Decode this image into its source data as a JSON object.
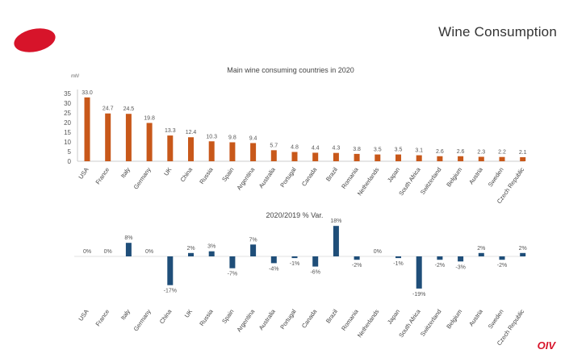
{
  "header": {
    "title": "Wine Consumption"
  },
  "footer": {
    "brand": "OIV"
  },
  "colors": {
    "consumption": "#c8581a",
    "variation": "#1f4e79",
    "brand_red": "#d7142a"
  },
  "chart_data": [
    {
      "type": "bar",
      "title": "Main wine consuming countries in 2020",
      "ylabel": "mhl",
      "ylim": [
        0,
        35
      ],
      "yticks": [
        0,
        5,
        10,
        15,
        20,
        25,
        30,
        35
      ],
      "grid": false,
      "categories": [
        "USA",
        "France",
        "Italy",
        "Germany",
        "UK",
        "China",
        "Russia",
        "Spain",
        "Argentina",
        "Australia",
        "Portugal",
        "Canada",
        "Brazil",
        "Romania",
        "Netherlands",
        "Japan",
        "South Africa",
        "Switzerland",
        "Belgium",
        "Austria",
        "Sweden",
        "Czech Republic"
      ],
      "values": [
        33.0,
        24.7,
        24.5,
        19.8,
        13.3,
        12.4,
        10.3,
        9.8,
        9.4,
        5.7,
        4.8,
        4.4,
        4.3,
        3.8,
        3.5,
        3.5,
        3.1,
        2.6,
        2.6,
        2.3,
        2.2,
        2.1
      ],
      "value_labels": [
        "33.0",
        "24.7",
        "24.5",
        "19.8",
        "13.3",
        "12.4",
        "10.3",
        "9.8",
        "9.4",
        "5.7",
        "4.8",
        "4.4",
        "4.3",
        "3.8",
        "3.5",
        "3.5",
        "3.1",
        "2.6",
        "2.6",
        "2.3",
        "2.2",
        "2.1"
      ]
    },
    {
      "type": "bar",
      "title": "2020/2019 % Var.",
      "grid": false,
      "categories": [
        "USA",
        "France",
        "Italy",
        "Germany",
        "China",
        "UK",
        "Russia",
        "Spain",
        "Argentina",
        "Australia",
        "Portugal",
        "Canada",
        "Brazil",
        "Romania",
        "Netherlands",
        "Japan",
        "South Africa",
        "Switzerland",
        "Belgium",
        "Austria",
        "Sweden",
        "Czech Republic"
      ],
      "values": [
        0,
        0,
        8,
        0,
        -17,
        2,
        3,
        -7,
        7,
        -4,
        -1,
        -6,
        18,
        -2,
        0,
        -1,
        -19,
        -2,
        -3,
        2,
        -2,
        2
      ],
      "value_labels": [
        "0%",
        "0%",
        "8%",
        "0%",
        "-17%",
        "2%",
        "3%",
        "-7%",
        "7%",
        "-4%",
        "-1%",
        "-6%",
        "18%",
        "-2%",
        "0%",
        "-1%",
        "-19%",
        "-2%",
        "-3%",
        "2%",
        "-2%",
        "2%"
      ]
    }
  ]
}
